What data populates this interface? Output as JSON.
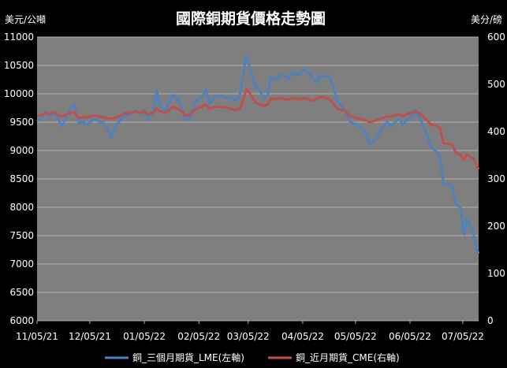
{
  "chart_data": {
    "type": "line",
    "title": "國際銅期貨價格走勢圖",
    "y_left_label": "美元/公噸",
    "y_right_label": "美分/磅",
    "y_left_range": [
      6000,
      11000
    ],
    "y_left_ticks": [
      "6000",
      "6500",
      "7000",
      "7500",
      "8000",
      "8500",
      "9000",
      "9500",
      "10000",
      "10500",
      "11000"
    ],
    "y_right_range": [
      0,
      600
    ],
    "y_right_ticks": [
      "0",
      "100",
      "200",
      "300",
      "400",
      "500",
      "600"
    ],
    "x_range": [
      "2021-11-05",
      "2022-07-14"
    ],
    "x_tick_labels": [
      "11/05/21",
      "12/05/21",
      "01/05/22",
      "02/05/22",
      "03/05/22",
      "04/05/22",
      "05/05/22",
      "06/05/22",
      "07/05/22"
    ],
    "x_tick_dates": [
      "2021-11-05",
      "2021-12-05",
      "2022-01-05",
      "2022-02-05",
      "2022-03-05",
      "2022-04-05",
      "2022-05-05",
      "2022-06-05",
      "2022-07-05"
    ],
    "grid": true,
    "legend_position": "bottom",
    "series": [
      {
        "name": "銅_三個月期貨_LME(左軸)",
        "axis": "left",
        "color": "#4f81bd",
        "points": [
          [
            "2021-11-05",
            9520
          ],
          [
            "2021-11-08",
            9580
          ],
          [
            "2021-11-10",
            9700
          ],
          [
            "2021-11-12",
            9600
          ],
          [
            "2021-11-15",
            9680
          ],
          [
            "2021-11-17",
            9560
          ],
          [
            "2021-11-19",
            9420
          ],
          [
            "2021-11-22",
            9620
          ],
          [
            "2021-11-24",
            9740
          ],
          [
            "2021-11-26",
            9800
          ],
          [
            "2021-11-29",
            9480
          ],
          [
            "2021-12-01",
            9520
          ],
          [
            "2021-12-03",
            9460
          ],
          [
            "2021-12-06",
            9520
          ],
          [
            "2021-12-08",
            9560
          ],
          [
            "2021-12-10",
            9520
          ],
          [
            "2021-12-13",
            9480
          ],
          [
            "2021-12-15",
            9400
          ],
          [
            "2021-12-17",
            9220
          ],
          [
            "2021-12-20",
            9440
          ],
          [
            "2021-12-22",
            9520
          ],
          [
            "2021-12-24",
            9600
          ],
          [
            "2021-12-28",
            9640
          ],
          [
            "2021-12-31",
            9700
          ],
          [
            "2022-01-03",
            9650
          ],
          [
            "2022-01-05",
            9720
          ],
          [
            "2022-01-07",
            9540
          ],
          [
            "2022-01-10",
            9700
          ],
          [
            "2022-01-12",
            10050
          ],
          [
            "2022-01-14",
            9780
          ],
          [
            "2022-01-17",
            9700
          ],
          [
            "2022-01-19",
            9850
          ],
          [
            "2022-01-21",
            9980
          ],
          [
            "2022-01-24",
            9900
          ],
          [
            "2022-01-26",
            9780
          ],
          [
            "2022-01-28",
            9540
          ],
          [
            "2022-01-31",
            9580
          ],
          [
            "2022-02-02",
            9800
          ],
          [
            "2022-02-04",
            9900
          ],
          [
            "2022-02-07",
            9950
          ],
          [
            "2022-02-09",
            10080
          ],
          [
            "2022-02-11",
            9820
          ],
          [
            "2022-02-14",
            9960
          ],
          [
            "2022-02-16",
            9960
          ],
          [
            "2022-02-18",
            9960
          ],
          [
            "2022-02-21",
            9920
          ],
          [
            "2022-02-23",
            9940
          ],
          [
            "2022-02-25",
            9880
          ],
          [
            "2022-02-28",
            9930
          ],
          [
            "2022-03-02",
            10300
          ],
          [
            "2022-03-04",
            10680
          ],
          [
            "2022-03-07",
            10350
          ],
          [
            "2022-03-09",
            10120
          ],
          [
            "2022-03-11",
            10080
          ],
          [
            "2022-03-14",
            9920
          ],
          [
            "2022-03-16",
            9960
          ],
          [
            "2022-03-18",
            10300
          ],
          [
            "2022-03-21",
            10250
          ],
          [
            "2022-03-23",
            10320
          ],
          [
            "2022-03-25",
            10340
          ],
          [
            "2022-03-28",
            10260
          ],
          [
            "2022-03-30",
            10380
          ],
          [
            "2022-04-01",
            10340
          ],
          [
            "2022-04-04",
            10360
          ],
          [
            "2022-04-06",
            10440
          ],
          [
            "2022-04-08",
            10380
          ],
          [
            "2022-04-11",
            10260
          ],
          [
            "2022-04-13",
            10200
          ],
          [
            "2022-04-15",
            10320
          ],
          [
            "2022-04-18",
            10300
          ],
          [
            "2022-04-20",
            10320
          ],
          [
            "2022-04-22",
            10150
          ],
          [
            "2022-04-25",
            9860
          ],
          [
            "2022-04-27",
            9780
          ],
          [
            "2022-04-29",
            9720
          ],
          [
            "2022-05-02",
            9500
          ],
          [
            "2022-05-04",
            9480
          ],
          [
            "2022-05-06",
            9460
          ],
          [
            "2022-05-09",
            9360
          ],
          [
            "2022-05-11",
            9300
          ],
          [
            "2022-05-13",
            9120
          ],
          [
            "2022-05-16",
            9180
          ],
          [
            "2022-05-18",
            9280
          ],
          [
            "2022-05-20",
            9400
          ],
          [
            "2022-05-23",
            9500
          ],
          [
            "2022-05-25",
            9420
          ],
          [
            "2022-05-27",
            9480
          ],
          [
            "2022-05-30",
            9560
          ],
          [
            "2022-06-01",
            9450
          ],
          [
            "2022-06-03",
            9540
          ],
          [
            "2022-06-06",
            9580
          ],
          [
            "2022-06-08",
            9720
          ],
          [
            "2022-06-10",
            9620
          ],
          [
            "2022-06-13",
            9400
          ],
          [
            "2022-06-15",
            9250
          ],
          [
            "2022-06-17",
            9050
          ],
          [
            "2022-06-20",
            8980
          ],
          [
            "2022-06-22",
            8900
          ],
          [
            "2022-06-24",
            8420
          ],
          [
            "2022-06-27",
            8400
          ],
          [
            "2022-06-29",
            8380
          ],
          [
            "2022-07-01",
            8060
          ],
          [
            "2022-07-04",
            7980
          ],
          [
            "2022-07-05",
            7600
          ],
          [
            "2022-07-06",
            7520
          ],
          [
            "2022-07-07",
            7800
          ],
          [
            "2022-07-08",
            7760
          ],
          [
            "2022-07-11",
            7560
          ],
          [
            "2022-07-12",
            7350
          ],
          [
            "2022-07-14",
            7180
          ]
        ]
      },
      {
        "name": "銅_近月期貨_CME(右軸)",
        "axis": "right",
        "color": "#c0504d",
        "points": [
          [
            "2021-11-05",
            433
          ],
          [
            "2021-11-08",
            436
          ],
          [
            "2021-11-10",
            440
          ],
          [
            "2021-11-12",
            437
          ],
          [
            "2021-11-15",
            441
          ],
          [
            "2021-11-17",
            436
          ],
          [
            "2021-11-19",
            432
          ],
          [
            "2021-11-22",
            437
          ],
          [
            "2021-11-24",
            440
          ],
          [
            "2021-11-26",
            442
          ],
          [
            "2021-11-29",
            428
          ],
          [
            "2021-12-01",
            432
          ],
          [
            "2021-12-03",
            430
          ],
          [
            "2021-12-06",
            432
          ],
          [
            "2021-12-08",
            434
          ],
          [
            "2021-12-10",
            432
          ],
          [
            "2021-12-13",
            430
          ],
          [
            "2021-12-15",
            428
          ],
          [
            "2021-12-17",
            427
          ],
          [
            "2021-12-20",
            430
          ],
          [
            "2021-12-22",
            433
          ],
          [
            "2021-12-24",
            437
          ],
          [
            "2021-12-28",
            440
          ],
          [
            "2021-12-31",
            442
          ],
          [
            "2022-01-03",
            440
          ],
          [
            "2022-01-05",
            443
          ],
          [
            "2022-01-07",
            436
          ],
          [
            "2022-01-10",
            440
          ],
          [
            "2022-01-12",
            449
          ],
          [
            "2022-01-14",
            443
          ],
          [
            "2022-01-17",
            440
          ],
          [
            "2022-01-19",
            445
          ],
          [
            "2022-01-21",
            452
          ],
          [
            "2022-01-24",
            448
          ],
          [
            "2022-01-26",
            444
          ],
          [
            "2022-01-28",
            434
          ],
          [
            "2022-01-31",
            437
          ],
          [
            "2022-02-02",
            444
          ],
          [
            "2022-02-04",
            449
          ],
          [
            "2022-02-07",
            453
          ],
          [
            "2022-02-09",
            457
          ],
          [
            "2022-02-11",
            448
          ],
          [
            "2022-02-14",
            452
          ],
          [
            "2022-02-16",
            453
          ],
          [
            "2022-02-18",
            452
          ],
          [
            "2022-02-21",
            450
          ],
          [
            "2022-02-23",
            449
          ],
          [
            "2022-02-25",
            446
          ],
          [
            "2022-02-28",
            447
          ],
          [
            "2022-03-02",
            465
          ],
          [
            "2022-03-04",
            490
          ],
          [
            "2022-03-07",
            475
          ],
          [
            "2022-03-09",
            462
          ],
          [
            "2022-03-11",
            458
          ],
          [
            "2022-03-14",
            455
          ],
          [
            "2022-03-16",
            457
          ],
          [
            "2022-03-18",
            470
          ],
          [
            "2022-03-21",
            469
          ],
          [
            "2022-03-23",
            471
          ],
          [
            "2022-03-25",
            469
          ],
          [
            "2022-03-28",
            468
          ],
          [
            "2022-03-30",
            472
          ],
          [
            "2022-04-01",
            470
          ],
          [
            "2022-04-04",
            468
          ],
          [
            "2022-04-06",
            471
          ],
          [
            "2022-04-08",
            469
          ],
          [
            "2022-04-11",
            465
          ],
          [
            "2022-04-13",
            470
          ],
          [
            "2022-04-15",
            473
          ],
          [
            "2022-04-18",
            471
          ],
          [
            "2022-04-20",
            469
          ],
          [
            "2022-04-22",
            460
          ],
          [
            "2022-04-25",
            448
          ],
          [
            "2022-04-27",
            446
          ],
          [
            "2022-04-29",
            444
          ],
          [
            "2022-05-02",
            432
          ],
          [
            "2022-05-04",
            430
          ],
          [
            "2022-05-06",
            428
          ],
          [
            "2022-05-09",
            426
          ],
          [
            "2022-05-11",
            424
          ],
          [
            "2022-05-13",
            420
          ],
          [
            "2022-05-16",
            423
          ],
          [
            "2022-05-18",
            425
          ],
          [
            "2022-05-20",
            428
          ],
          [
            "2022-05-23",
            432
          ],
          [
            "2022-05-25",
            431
          ],
          [
            "2022-05-27",
            434
          ],
          [
            "2022-05-30",
            436
          ],
          [
            "2022-06-01",
            432
          ],
          [
            "2022-06-03",
            436
          ],
          [
            "2022-06-06",
            440
          ],
          [
            "2022-06-08",
            443
          ],
          [
            "2022-06-10",
            440
          ],
          [
            "2022-06-13",
            430
          ],
          [
            "2022-06-15",
            422
          ],
          [
            "2022-06-17",
            415
          ],
          [
            "2022-06-20",
            412
          ],
          [
            "2022-06-22",
            408
          ],
          [
            "2022-06-24",
            376
          ],
          [
            "2022-06-27",
            374
          ],
          [
            "2022-06-29",
            373
          ],
          [
            "2022-07-01",
            356
          ],
          [
            "2022-07-04",
            350
          ],
          [
            "2022-07-05",
            342
          ],
          [
            "2022-07-06",
            340
          ],
          [
            "2022-07-07",
            352
          ],
          [
            "2022-07-08",
            350
          ],
          [
            "2022-07-11",
            344
          ],
          [
            "2022-07-12",
            336
          ],
          [
            "2022-07-14",
            320
          ]
        ]
      }
    ]
  }
}
